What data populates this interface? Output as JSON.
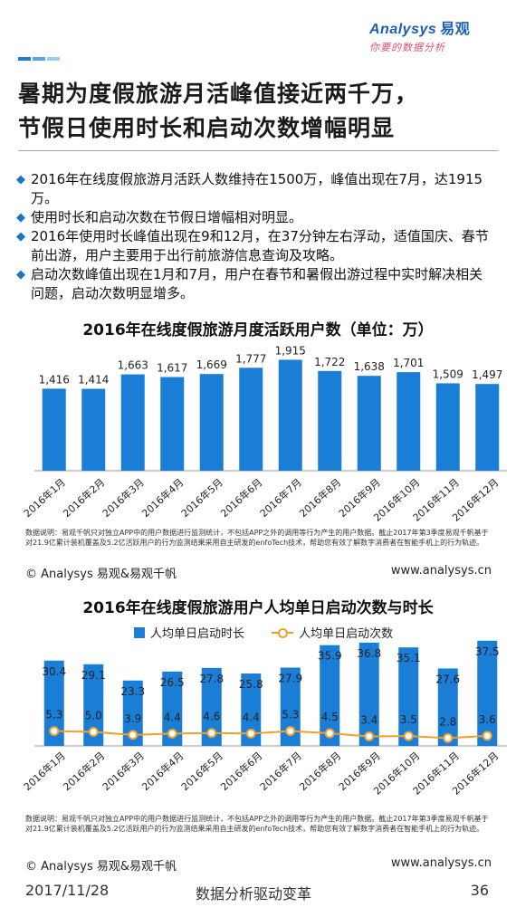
{
  "header": {
    "brand": "Analysys",
    "brand_cn": "易观",
    "slogan": "你要的数据分析",
    "title_line1": "暑期为度假旅游月活峰值接近两千万，",
    "title_line2": "节假日使用时长和启动次数增幅明显"
  },
  "bullets": [
    "2016年在线度假旅游月活跃人数维持在1500万，峰值出现在7月，达1915万。",
    "使用时长和启动次数在节假日增幅相对明显。",
    "2016年使用时长峰值出现在9和12月，在37分钟左右浮动，适值国庆、春节前出游，用户主要用于出行前旅游信息查询及攻略。",
    "启动次数峰值出现在1月和7月，用户在春节和暑假出游过程中实时解决相关问题，启动次数明显增多。"
  ],
  "chart1": {
    "title": "2016年在线度假旅游月度活跃用户数（单位：万）",
    "note": "数据说明：易观千帆只对独立APP中的用户数据进行监测统计，不包括APP之外的调用等行为产生的用户数据。截止2017年第3季度易观千帆基于对21.9亿累计装机覆盖及5.2亿活跃用户的行为监测结果采用自主研发的enfoTech技术，帮助您有效了解数字消费者在智能手机上的行为轨迹。",
    "source": "© Analysys 易观&易观千帆",
    "url": "www.analysys.cn"
  },
  "chart2": {
    "title": "2016年在线度假旅游用户人均单日启动次数与时长",
    "legend_bar": "人均单日启动时长",
    "legend_line": "人均单日启动次数",
    "note": "数据说明：易观千帆只对独立APP中的用户数据进行监测统计，不包括APP之外的调用等行为产生的用户数据。截止2017年第3季度易观千帆基于对21.9亿累计装机覆盖及5.2亿活跃用户的行为监测结果采用自主研发的enfoTech技术，帮助您有效了解数字消费者在智能手机上的行为轨迹。",
    "source": "© Analysys 易观&易观千帆",
    "url": "www.analysys.cn"
  },
  "footer": {
    "date": "2017/11/28",
    "tagline": "数据分析驱动变革",
    "page": "36"
  },
  "colors": {
    "bar": "#1b7ed6",
    "line": "#f3a02a",
    "accent_pink": "#e24b77"
  },
  "chart_data": [
    {
      "type": "bar",
      "title": "2016年在线度假旅游月度活跃用户数（单位：万）",
      "categories": [
        "2016年1月",
        "2016年2月",
        "2016年3月",
        "2016年4月",
        "2016年5月",
        "2016年6月",
        "2016年7月",
        "2016年8月",
        "2016年9月",
        "2016年10月",
        "2016年11月",
        "2016年12月"
      ],
      "values": [
        1416,
        1414,
        1663,
        1617,
        1669,
        1777,
        1915,
        1722,
        1638,
        1701,
        1509,
        1497
      ],
      "value_labels": [
        "1,416",
        "1,414",
        "1,663",
        "1,617",
        "1,669",
        "1,777",
        "1,915",
        "1,722",
        "1,638",
        "1,701",
        "1,509",
        "1,497"
      ],
      "ylim": [
        0,
        2000
      ]
    },
    {
      "type": "bar",
      "title": "2016年在线度假旅游用户人均单日启动次数与时长",
      "categories": [
        "2016年1月",
        "2016年2月",
        "2016年3月",
        "2016年4月",
        "2016年5月",
        "2016年6月",
        "2016年7月",
        "2016年8月",
        "2016年9月",
        "2016年10月",
        "2016年11月",
        "2016年12月"
      ],
      "series": [
        {
          "name": "人均单日启动时长",
          "type": "bar",
          "values": [
            30.4,
            29.1,
            23.3,
            26.5,
            27.8,
            25.8,
            27.9,
            35.9,
            36.8,
            35.1,
            27.6,
            37.5
          ]
        },
        {
          "name": "人均单日启动次数",
          "type": "line",
          "values": [
            5.3,
            5.0,
            3.9,
            4.4,
            4.6,
            4.4,
            5.3,
            4.5,
            3.4,
            3.5,
            2.8,
            3.6
          ]
        }
      ],
      "ylim": [
        0,
        40
      ]
    }
  ]
}
